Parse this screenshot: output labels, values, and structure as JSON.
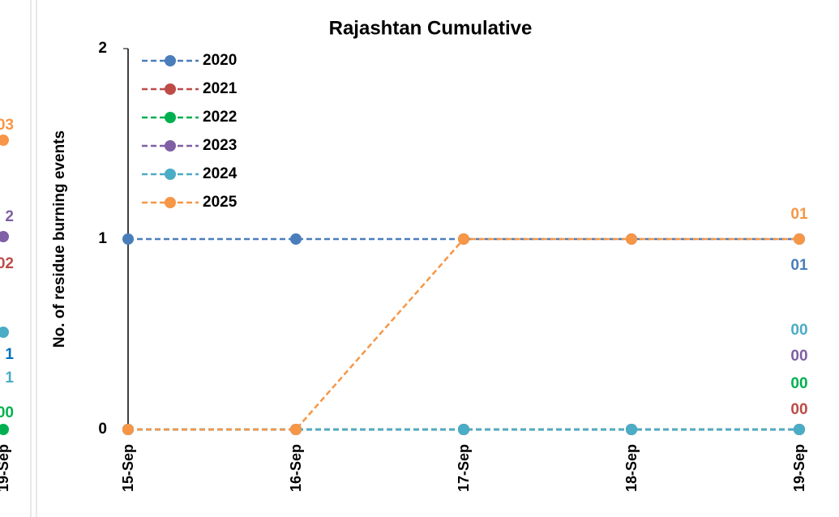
{
  "chart_data": {
    "type": "line",
    "title": "Rajashtan Cumulative",
    "y_label": "No. of residue burning events",
    "categories": [
      "15-Sep",
      "16-Sep",
      "17-Sep",
      "18-Sep",
      "19-Sep"
    ],
    "series": [
      {
        "name": "2020",
        "color": "#4a7ebb",
        "values": [
          1,
          1,
          1,
          1,
          1
        ],
        "value_labels": [
          null,
          null,
          null,
          null,
          "01"
        ]
      },
      {
        "name": "2021",
        "color": "#be4b48",
        "values": [
          0,
          0,
          0,
          0,
          0
        ],
        "value_labels": [
          null,
          null,
          null,
          null,
          "00"
        ]
      },
      {
        "name": "2022",
        "color": "#00b050",
        "values": [
          0,
          0,
          0,
          0,
          0
        ],
        "value_labels": [
          null,
          null,
          null,
          null,
          "00"
        ]
      },
      {
        "name": "2023",
        "color": "#7f5fa5",
        "values": [
          0,
          0,
          0,
          0,
          0
        ],
        "value_labels": [
          null,
          null,
          null,
          null,
          "00"
        ]
      },
      {
        "name": "2024",
        "color": "#4bacc6",
        "values": [
          0,
          0,
          0,
          0,
          0
        ],
        "value_labels": [
          null,
          null,
          null,
          null,
          "00"
        ]
      },
      {
        "name": "2025",
        "color": "#f79646",
        "values": [
          0,
          0,
          1,
          1,
          1
        ],
        "value_labels": [
          null,
          null,
          null,
          null,
          "01"
        ]
      }
    ],
    "ylim": [
      0,
      2
    ],
    "yticks": [
      0,
      1,
      2
    ],
    "legend": "top-left",
    "line_style": "dashed"
  },
  "left_panel_fragment": {
    "labels": [
      "03",
      "2",
      "02",
      "1",
      "1",
      "00"
    ],
    "category": "19-Sep"
  }
}
